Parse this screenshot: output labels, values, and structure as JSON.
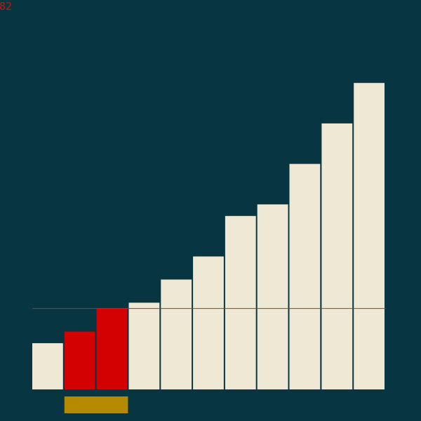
{
  "counter": {
    "value": "82"
  },
  "colors": {
    "background": "#073642",
    "bar_default": "#eee8d5",
    "bar_active": "#d30102",
    "pointer": "#b58900",
    "threshold_line": "#c0262a"
  },
  "visualization": {
    "type": "sorting-bars",
    "bar_values": [
      16,
      20,
      28,
      30,
      38,
      46,
      60,
      64,
      78,
      92,
      106
    ],
    "value_max": 108,
    "active_indices": [
      1,
      2
    ],
    "pointer_range": [
      1,
      2
    ],
    "threshold_value": 28
  }
}
